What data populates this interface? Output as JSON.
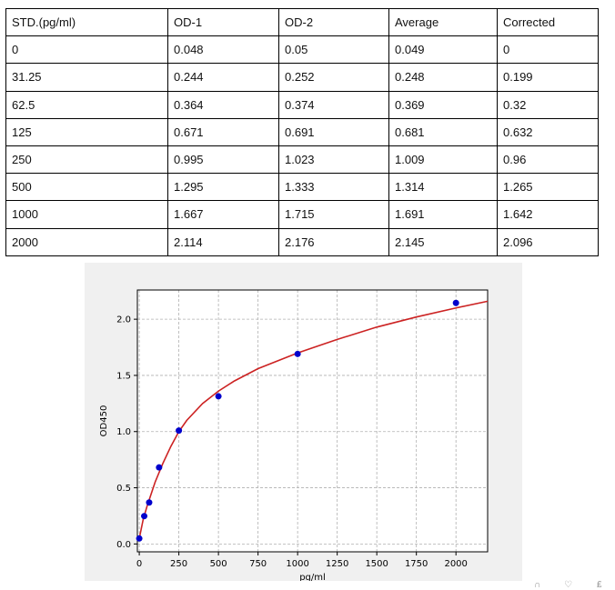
{
  "table": {
    "headers": [
      "STD.(pg/ml)",
      "OD-1",
      "OD-2",
      "Average",
      "Corrected"
    ],
    "rows": [
      [
        "0",
        "0.048",
        "0.05",
        "0.049",
        "0"
      ],
      [
        "31.25",
        "0.244",
        "0.252",
        "0.248",
        "0.199"
      ],
      [
        "62.5",
        "0.364",
        "0.374",
        "0.369",
        "0.32"
      ],
      [
        "125",
        "0.671",
        "0.691",
        "0.681",
        "0.632"
      ],
      [
        "250",
        "0.995",
        "1.023",
        "1.009",
        "0.96"
      ],
      [
        "500",
        "1.295",
        "1.333",
        "1.314",
        "1.265"
      ],
      [
        "1000",
        "1.667",
        "1.715",
        "1.691",
        "1.642"
      ],
      [
        "2000",
        "2.114",
        "2.176",
        "2.145",
        "2.096"
      ]
    ]
  },
  "chart_data": {
    "type": "scatter",
    "title": "",
    "xlabel": "pg/ml",
    "ylabel": "OD450",
    "xlim": [
      -12,
      2200
    ],
    "ylim": [
      -0.07,
      2.26
    ],
    "xticks": [
      0,
      250,
      500,
      750,
      1000,
      1250,
      1500,
      1750,
      2000
    ],
    "yticks": [
      0.0,
      0.5,
      1.0,
      1.5,
      2.0
    ],
    "xtick_labels": [
      "0",
      "250",
      "500",
      "750",
      "1000",
      "1250",
      "1500",
      "1750",
      "2000"
    ],
    "ytick_labels": [
      "0.0",
      "0.5",
      "1.0",
      "1.5",
      "2.0"
    ],
    "grid": true,
    "series": [
      {
        "kind": "points",
        "color": "#0000cc",
        "x": [
          0,
          31.25,
          62.5,
          125,
          250,
          500,
          1000,
          2000
        ],
        "y": [
          0.049,
          0.248,
          0.369,
          0.681,
          1.009,
          1.314,
          1.691,
          2.145
        ]
      },
      {
        "kind": "fit-curve",
        "color": "#cc2222",
        "x": [
          0,
          25,
          50,
          100,
          150,
          200,
          250,
          300,
          400,
          500,
          600,
          750,
          1000,
          1250,
          1500,
          1750,
          2000,
          2200
        ],
        "y": [
          0.049,
          0.22,
          0.34,
          0.55,
          0.72,
          0.87,
          1.0,
          1.1,
          1.25,
          1.36,
          1.45,
          1.56,
          1.7,
          1.82,
          1.93,
          2.02,
          2.1,
          2.16
        ]
      }
    ]
  },
  "colors": {
    "panel_bg": "#f0f0f0",
    "plot_bg": "#ffffff",
    "grid": "#b0b0b0"
  }
}
